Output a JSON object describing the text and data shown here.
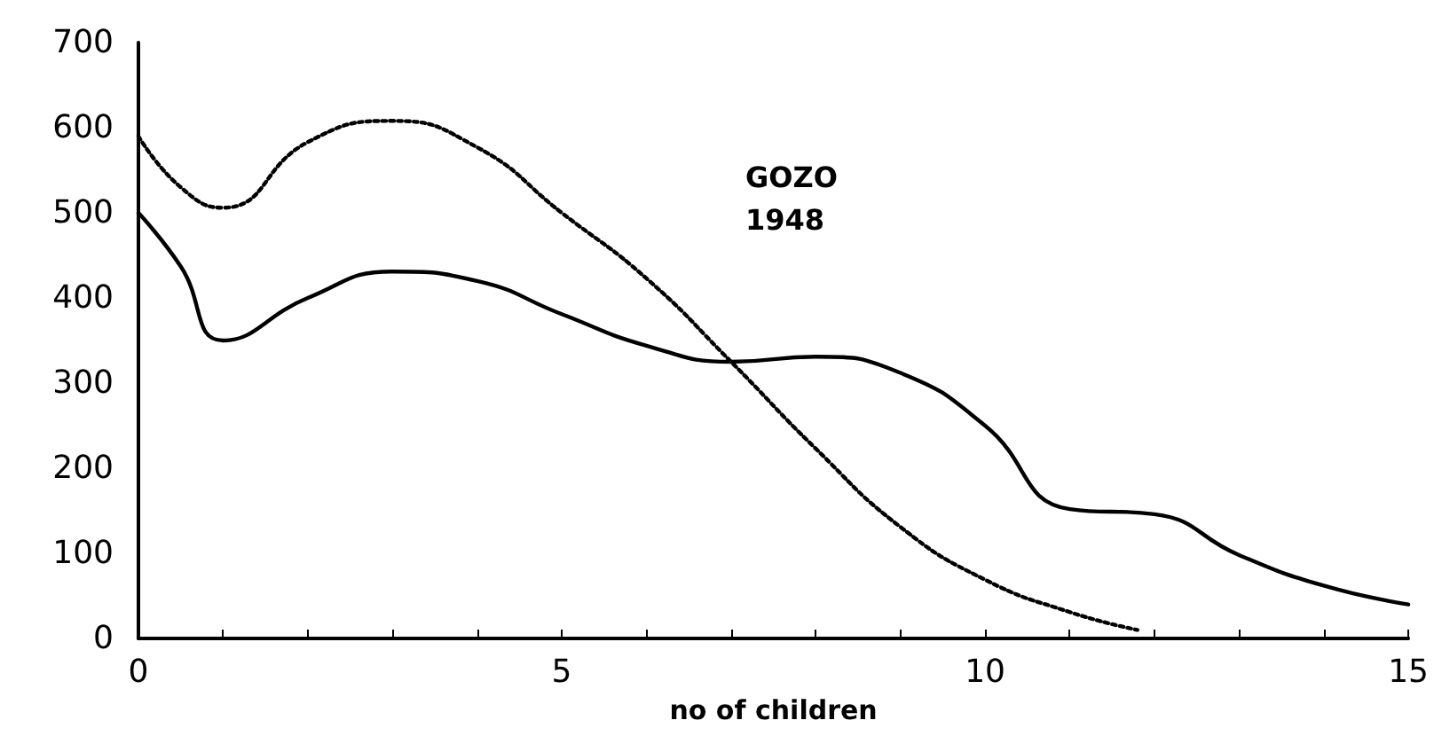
{
  "chart_data": {
    "type": "line",
    "xlabel": "no of children",
    "annotations": [
      "GOZO\n1948"
    ],
    "x": [
      0,
      0.5,
      1,
      2,
      3,
      4,
      5,
      6,
      7,
      8,
      9,
      10,
      11,
      12,
      13,
      14,
      15
    ],
    "series": [
      {
        "color": "#000000",
        "line_style": "solid",
        "values": [
          500,
          437,
          350,
          400,
          431,
          420,
          381,
          344,
          325,
          331,
          312,
          250,
          152,
          146,
          98,
          62,
          40
        ]
      },
      {
        "color": "#000000",
        "line_style": "dotted",
        "x": [
          0,
          0.5,
          1,
          2,
          3,
          4,
          5,
          6,
          7,
          8,
          9,
          10,
          11,
          11.8
        ],
        "values": [
          590,
          530,
          506,
          583,
          608,
          577,
          500,
          423,
          325,
          223,
          131,
          69,
          31,
          10
        ]
      }
    ],
    "xlim": [
      0,
      15
    ],
    "xticks": [
      0,
      {
        "value": 1,
        "label": null
      },
      {
        "value": 2,
        "label": null
      },
      {
        "value": 3,
        "label": null
      },
      {
        "value": 4,
        "label": null
      },
      5,
      {
        "value": 6,
        "label": null
      },
      {
        "value": 7,
        "label": null
      },
      {
        "value": 8,
        "label": null
      },
      {
        "value": 9,
        "label": null
      },
      10,
      {
        "value": 11,
        "label": null
      },
      {
        "value": 12,
        "label": null
      },
      {
        "value": 13,
        "label": null
      },
      {
        "value": 14,
        "label": null
      },
      15
    ],
    "ylim": [
      0,
      700
    ],
    "yticks": [
      0,
      100,
      200,
      300,
      400,
      500,
      600,
      700
    ],
    "marker": "none"
  }
}
